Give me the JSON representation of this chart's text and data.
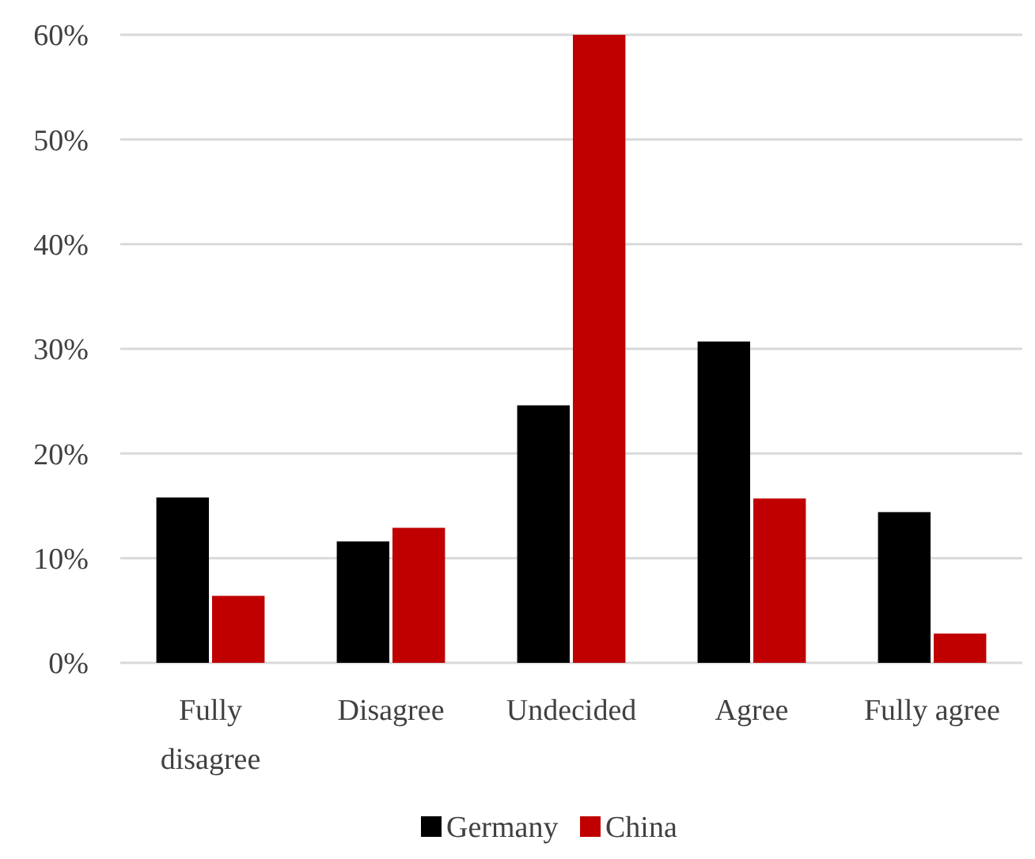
{
  "chart_data": {
    "type": "bar",
    "categories": [
      "Fully disagree",
      "Disagree",
      "Undecided",
      "Agree",
      "Fully agree"
    ],
    "series": [
      {
        "name": "Germany",
        "color": "#000000",
        "values": [
          15.8,
          11.6,
          24.6,
          30.7,
          14.4
        ]
      },
      {
        "name": "China",
        "color": "#c00000",
        "values": [
          6.4,
          12.9,
          60,
          15.7,
          2.8
        ]
      }
    ],
    "ylim": [
      0,
      60
    ],
    "yticks": [
      {
        "value": 0,
        "label": "0%"
      },
      {
        "value": 10,
        "label": "10%"
      },
      {
        "value": 20,
        "label": "20%"
      },
      {
        "value": 30,
        "label": "30%"
      },
      {
        "value": 40,
        "label": "40%"
      },
      {
        "value": 50,
        "label": "50%"
      },
      {
        "value": 60,
        "label": "60%"
      }
    ],
    "grid": "y",
    "legend": "bottom"
  }
}
